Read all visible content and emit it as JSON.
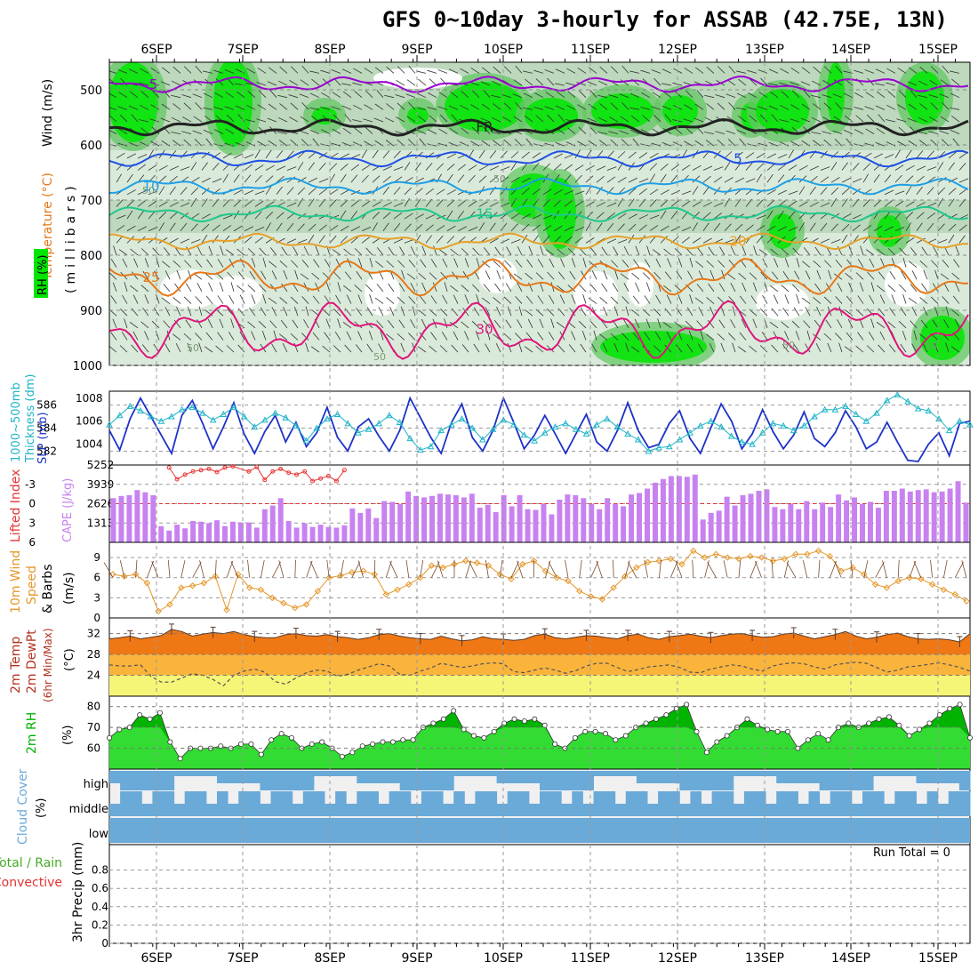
{
  "title": "GFS 0~10day 3-hourly for ASSAB (42.75E, 13N)",
  "days": [
    "6SEP",
    "7SEP",
    "8SEP",
    "9SEP",
    "10SEP",
    "11SEP",
    "12SEP",
    "13SEP",
    "14SEP",
    "15SEP"
  ],
  "colors": {
    "temp_purple": "#9a00d0",
    "temp_black": "#222222",
    "temp_blue": "#1e50e6",
    "temp_lightblue": "#1ea0e6",
    "temp_teal": "#1ec88c",
    "temp_orange": "#e6a028",
    "temp_darkorange": "#e67818",
    "temp_magenta": "#e0147c",
    "rh_light": "#d6e8d6",
    "rh_mid": "#b4d2b4",
    "rh_green": "#64c864",
    "rh_bright": "#00e600",
    "slp": "#1e32c8",
    "thickness": "#1eb4c8",
    "cape": "#c882f0",
    "lifted": "#e63232",
    "wind10": "#e69628",
    "temp2m": "#f07814",
    "dew": "#555555",
    "rh2m_dark": "#00b400",
    "rh2m_light": "#32dc32",
    "cloud": "#6aaad8",
    "cloud_bg": "#f0f0f0"
  },
  "chart_data": [
    {
      "type": "contour",
      "panel": "upper-air",
      "labels": [
        "Temperature (°C)",
        "Wind (m/s)",
        "RH (%)",
        "(millibars)"
      ],
      "yaxis": {
        "label": "(millibars)",
        "ticks": [
          500,
          600,
          700,
          800,
          900,
          1000
        ],
        "range": [
          450,
          1000
        ]
      },
      "contours": [
        {
          "value": "-5",
          "pressure": 490
        },
        {
          "value": "FR",
          "pressure": 568
        },
        {
          "value": "5",
          "pressure": 625
        },
        {
          "value": "10",
          "pressure": 675
        },
        {
          "value": "15",
          "pressure": 725
        },
        {
          "value": "20",
          "pressure": 775
        },
        {
          "value": "25",
          "pressure": 840
        },
        {
          "value": "30",
          "pressure": 935
        }
      ],
      "rh_labels": [
        "50",
        "50",
        "50",
        "50",
        "50",
        "50"
      ]
    },
    {
      "type": "line",
      "panel": "slp-thickness",
      "labels": [
        "1000~500mb",
        "Thickness (dm)",
        "SLP (mb)"
      ],
      "left_ticks": [
        582,
        584,
        586
      ],
      "left_range": [
        580.8,
        587.2
      ],
      "right_ticks": [
        1004,
        1006,
        1008
      ],
      "right_range": [
        1002.2,
        1008.6
      ],
      "slp": [
        1005.2,
        1003.5,
        1006.2,
        1008.0,
        1006.4,
        1004.8,
        1003.2,
        1006.5,
        1007.8,
        1005.8,
        1003.6,
        1005.5,
        1007.6,
        1004.9,
        1003.2,
        1005.1,
        1006.5,
        1004.2,
        1005.9,
        1003.8,
        1005.0,
        1007.2,
        1004.6,
        1003.4,
        1005.5,
        1006.2,
        1004.7,
        1003.4,
        1005.2,
        1008.0,
        1006.3,
        1004.6,
        1003.2,
        1005.9,
        1007.5,
        1004.6,
        1003.4,
        1005.2,
        1008.0,
        1005.9,
        1003.6,
        1004.8,
        1006.5,
        1004.9,
        1003.2,
        1004.9,
        1006.6,
        1004.2,
        1003.4,
        1005.2,
        1007.6,
        1005.2,
        1003.7,
        1004.0,
        1005.8,
        1006.9,
        1004.5,
        1003.2,
        1005.4,
        1007.5,
        1006.0,
        1003.6,
        1004.9,
        1007.0,
        1005.1,
        1003.6,
        1004.8,
        1006.8,
        1004.5,
        1003.8,
        1005.0,
        1006.9,
        1005.5,
        1003.6,
        1004.2,
        1005.9,
        1004.2,
        1002.6,
        1002.5,
        1004.0,
        1005.0,
        1003.0,
        1005.8,
        1006.0
      ],
      "thickness": [
        584.3,
        585.1,
        585.9,
        585.5,
        585.0,
        584.6,
        585.0,
        585.6,
        585.8,
        585.3,
        584.7,
        585.2,
        585.8,
        585.0,
        584.1,
        584.7,
        585.3,
        584.9,
        584.2,
        582.9,
        584.0,
        584.8,
        585.2,
        584.4,
        583.6,
        583.9,
        584.4,
        585.1,
        584.5,
        583.1,
        582.1,
        582.4,
        583.8,
        584.3,
        584.8,
        584.0,
        583.0,
        583.9,
        584.7,
        584.3,
        583.4,
        582.9,
        583.6,
        584.1,
        584.4,
        583.9,
        583.5,
        584.3,
        584.8,
        584.1,
        583.5,
        583.0,
        582.0,
        582.3,
        582.4,
        583.0,
        583.6,
        584.2,
        584.6,
        584.1,
        583.3,
        582.8,
        582.6,
        583.6,
        584.4,
        584.2,
        583.8,
        584.2,
        585.0,
        585.6,
        585.6,
        585.9,
        585.2,
        584.6,
        585.3,
        586.4,
        586.9,
        586.3,
        585.7,
        585.5,
        584.8,
        583.8,
        584.6,
        584.3
      ]
    },
    {
      "type": "bar",
      "panel": "cape-lifted-index",
      "labels": [
        "Lifted Index",
        "CAPE (J/kg)"
      ],
      "left_ticks": [
        -3,
        0,
        3,
        6
      ],
      "right_ticks": [
        1313,
        2626,
        3939,
        5252
      ],
      "cape_range": [
        0,
        5252
      ],
      "cape": [
        3000,
        3150,
        3200,
        3550,
        3400,
        3200,
        1100,
        800,
        1200,
        950,
        1450,
        1400,
        1300,
        1500,
        1100,
        1400,
        1350,
        1350,
        1000,
        2250,
        2500,
        3000,
        1450,
        1000,
        1300,
        1050,
        1200,
        1050,
        1000,
        1150,
        2300,
        2000,
        2300,
        1650,
        2800,
        2750,
        2600,
        3450,
        3150,
        3050,
        3150,
        3300,
        3250,
        3200,
        3050,
        3300,
        2350,
        2550,
        2050,
        3200,
        2450,
        3200,
        2250,
        2200,
        2600,
        1900,
        2900,
        3250,
        3200,
        3000,
        2600,
        2250,
        3000,
        2600,
        2450,
        3250,
        3350,
        3650,
        4050,
        4300,
        4500,
        4500,
        4450,
        4600,
        1550,
        2000,
        2150,
        3100,
        2500,
        3200,
        3300,
        3500,
        3600,
        2400,
        2250,
        2600,
        2250,
        2800,
        2250,
        2700,
        2400,
        3250,
        2850,
        3050,
        2600,
        2750,
        2350,
        3500,
        3500,
        3650,
        3450,
        3550,
        3600,
        3400,
        3450,
        3650,
        4150,
        2700
      ],
      "lifted": [
        null,
        null,
        null,
        null,
        null,
        null,
        null,
        -5.6,
        -3.8,
        -4.5,
        -5.0,
        -5.2,
        -5.4,
        -4.9,
        -5.6,
        -5.8,
        null,
        -5.0,
        -5.7,
        -3.7,
        -5.0,
        -5.4,
        -4.8,
        -4.5,
        -5.0,
        -3.5,
        -3.9,
        -4.3,
        -3.5,
        -5.2,
        null,
        null,
        null,
        null,
        null,
        null,
        null,
        null,
        null,
        null,
        null,
        null,
        null,
        null,
        null,
        null,
        null,
        null,
        null,
        null,
        null,
        null,
        null,
        null,
        null,
        null,
        null,
        null,
        null,
        null,
        null,
        null,
        null,
        null,
        null,
        null,
        null,
        null,
        null,
        null,
        null,
        null,
        null,
        null,
        null,
        null,
        null,
        null,
        null,
        null,
        null,
        null,
        null,
        null,
        null,
        null,
        null,
        null,
        null,
        null,
        null,
        null,
        null,
        null,
        null,
        null,
        null,
        null,
        null,
        null,
        null,
        null,
        null,
        null,
        null,
        null,
        null,
        null
      ],
      "lifted_range": [
        -6,
        6
      ]
    },
    {
      "type": "line",
      "panel": "wind-10m",
      "labels": [
        "10m Wind",
        "Speed",
        "& Barbs",
        "(m/s)"
      ],
      "yticks": [
        0,
        3,
        6,
        9
      ],
      "yrange": [
        0,
        11
      ],
      "speed": [
        6.5,
        6.2,
        6.5,
        5.2,
        1.0,
        2.0,
        4.5,
        4.8,
        5.2,
        6.2,
        1.2,
        6.5,
        4.5,
        4.2,
        3.0,
        2.2,
        1.5,
        2.0,
        4.0,
        6.0,
        6.3,
        6.8,
        7.0,
        6.5,
        3.5,
        4.2,
        5.0,
        6.0,
        7.8,
        7.5,
        8.0,
        8.5,
        8.2,
        7.8,
        6.5,
        5.8,
        8.0,
        8.5,
        7.0,
        6.0,
        5.5,
        4.0,
        3.2,
        2.8,
        4.5,
        6.2,
        7.5,
        8.3,
        8.5,
        8.8,
        8.0,
        10.0,
        9.0,
        9.5,
        9.0,
        8.8,
        9.2,
        9.0,
        8.5,
        8.8,
        9.5,
        9.5,
        10.0,
        9.2,
        7.0,
        7.5,
        6.5,
        5.0,
        4.5,
        5.5,
        6.0,
        5.8,
        5.0,
        4.2,
        3.5,
        2.5
      ]
    },
    {
      "type": "area",
      "panel": "temp-2m",
      "labels": [
        "2m Temp",
        "2m DewPt",
        "(6hr Min/Max)",
        "(°C)"
      ],
      "yticks": [
        24,
        28,
        32
      ],
      "yrange": [
        20,
        35
      ],
      "temp": [
        31.0,
        31.2,
        31.5,
        31.0,
        31.3,
        31.6,
        32.8,
        32.4,
        31.5,
        31.9,
        32.2,
        32.0,
        32.4,
        31.8,
        31.4,
        31.2,
        31.2,
        31.8,
        32.0,
        31.6,
        31.5,
        31.8,
        31.4,
        31.2,
        30.9,
        31.2,
        31.8,
        32.0,
        31.5,
        31.2,
        31.0,
        30.9,
        31.5,
        31.0,
        30.6,
        30.8,
        31.4,
        31.0,
        30.9,
        30.7,
        30.9,
        31.6,
        31.9,
        31.2,
        31.0,
        31.3,
        31.6,
        31.5,
        31.2,
        31.0,
        31.6,
        31.9,
        31.2,
        30.9,
        31.4,
        31.6,
        31.9,
        31.5,
        31.2,
        31.6,
        31.9,
        32.0,
        31.6,
        31.3,
        31.4,
        31.9,
        32.1,
        31.5,
        31.0,
        31.4,
        31.8,
        32.4,
        31.5,
        31.0,
        31.3,
        31.8,
        32.1,
        31.4,
        31.0,
        30.9,
        31.0,
        30.8,
        30.4,
        32.0
      ],
      "dew": [
        26.0,
        25.8,
        25.8,
        26.0,
        23.8,
        22.7,
        22.7,
        23.5,
        24.3,
        24.0,
        23.2,
        22.0,
        24.0,
        24.8,
        25.2,
        24.6,
        22.8,
        22.3,
        23.5,
        24.5,
        25.0,
        24.8,
        23.8,
        24.2,
        25.0,
        25.6,
        26.2,
        25.8,
        24.2,
        24.0,
        24.8,
        25.4,
        26.3,
        25.9,
        25.5,
        25.8,
        26.2,
        26.4,
        26.2,
        24.7,
        24.5,
        25.0,
        25.4,
        25.0,
        24.4,
        24.9,
        25.8,
        26.3,
        26.3,
        25.5,
        24.7,
        25.1,
        25.6,
        25.8,
        26.0,
        25.5,
        24.6,
        24.5,
        25.2,
        25.6,
        26.0,
        25.8,
        25.2,
        24.8,
        25.8,
        26.2,
        26.4,
        26.2,
        25.6,
        25.2,
        26.0,
        26.3,
        26.5,
        26.3,
        25.5,
        24.6,
        25.0,
        25.6,
        25.8,
        26.1,
        26.4,
        26.0,
        25.5,
        24.8
      ],
      "errors": [
        "T",
        "T",
        "T",
        "T",
        "T",
        "T",
        "T",
        "T",
        "T",
        "T",
        "T",
        "T",
        "T",
        "T",
        "T",
        "T",
        "T",
        "T",
        "T",
        "T",
        "T",
        "T"
      ]
    },
    {
      "type": "area",
      "panel": "rh-2m",
      "labels": [
        "2m RH",
        "(%)"
      ],
      "yticks": [
        60,
        70,
        80
      ],
      "yrange": [
        50,
        85
      ],
      "rh": [
        65,
        69,
        70,
        76,
        74,
        77,
        63,
        55,
        60,
        60,
        60,
        61,
        60,
        62,
        62,
        57,
        64,
        67,
        65,
        60,
        62,
        63,
        60,
        56,
        58,
        61,
        62,
        63,
        63,
        64,
        64,
        70,
        72,
        74,
        78,
        69,
        66,
        65,
        68,
        72,
        74,
        73,
        74,
        71,
        62,
        60,
        65,
        68,
        68,
        67,
        64,
        66,
        70,
        72,
        74,
        76,
        79,
        81,
        68,
        58,
        63,
        66,
        70,
        74,
        71,
        69,
        68,
        68,
        60,
        64,
        67,
        64,
        70,
        72,
        70,
        72,
        74,
        75,
        71,
        66,
        69,
        72,
        76,
        79,
        81,
        65
      ]
    },
    {
      "type": "heatmap",
      "panel": "cloud-cover",
      "labels": [
        "Cloud Cover",
        "(%)",
        "high",
        "middle",
        "low"
      ]
    },
    {
      "type": "bar",
      "panel": "precip",
      "labels": [
        "Total / Rain",
        "Convective",
        "3hr Precip (mm)"
      ],
      "yticks": [
        0,
        0.2,
        0.4,
        0.6,
        0.8
      ],
      "yrange": [
        0,
        1
      ],
      "runtotal": "Run Total = 0"
    }
  ]
}
